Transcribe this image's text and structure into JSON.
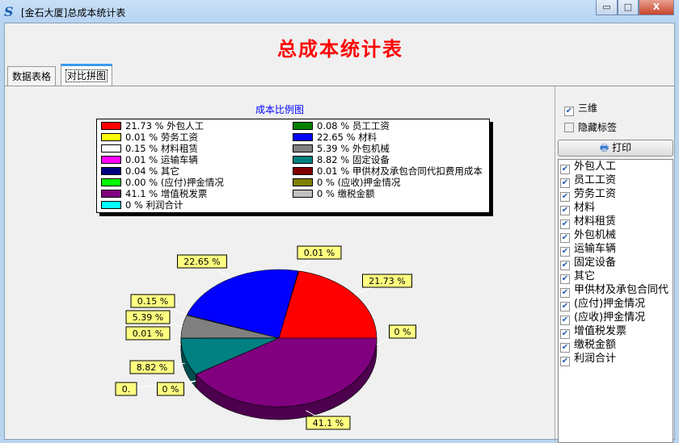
{
  "window": {
    "title": "[金石大厦]总成本统计表",
    "minimize": "▭",
    "maximize": "□",
    "close": "X"
  },
  "header": {
    "title": "总成本统计表"
  },
  "tabs": [
    {
      "label": "数据表格"
    },
    {
      "label": "对比拼图"
    }
  ],
  "side": {
    "three_d": {
      "label": "三维",
      "checked": true
    },
    "hide_labels": {
      "label": "隐藏标签",
      "checked": false
    },
    "print_label": "打印",
    "items": [
      {
        "label": "外包人工",
        "checked": true
      },
      {
        "label": "员工工资",
        "checked": true
      },
      {
        "label": "劳务工资",
        "checked": true
      },
      {
        "label": "材料",
        "checked": true
      },
      {
        "label": "材料租赁",
        "checked": true
      },
      {
        "label": "外包机械",
        "checked": true
      },
      {
        "label": "运输车辆",
        "checked": true
      },
      {
        "label": "固定设备",
        "checked": true
      },
      {
        "label": "其它",
        "checked": true
      },
      {
        "label": "甲供材及承包合同代",
        "checked": true
      },
      {
        "label": "(应付)押金情况",
        "checked": true
      },
      {
        "label": "(应收)押金情况",
        "checked": true
      },
      {
        "label": "增值税发票",
        "checked": true
      },
      {
        "label": "缴税金额",
        "checked": true
      },
      {
        "label": "利润合计",
        "checked": true
      }
    ]
  },
  "chart_data": {
    "type": "pie",
    "title": "成本比例图",
    "three_d": true,
    "legend": "top",
    "slices": [
      {
        "name": "外包人工",
        "value": 21.73,
        "label": "21.73 %",
        "color": "#ff0000"
      },
      {
        "name": "员工工资",
        "value": 0.08,
        "label": "0.08 %",
        "color": "#008000"
      },
      {
        "name": "劳务工资",
        "value": 0.01,
        "label": "0.01 %",
        "color": "#ffff00"
      },
      {
        "name": "材料",
        "value": 22.65,
        "label": "22.65 %",
        "color": "#0000ff"
      },
      {
        "name": "材料租赁",
        "value": 0.15,
        "label": "0.15 %",
        "color": "#ffffff"
      },
      {
        "name": "外包机械",
        "value": 5.39,
        "label": "5.39 %",
        "color": "#808080"
      },
      {
        "name": "运输车辆",
        "value": 0.01,
        "label": "0.01 %",
        "color": "#ff00ff"
      },
      {
        "name": "固定设备",
        "value": 8.82,
        "label": "8.82 %",
        "color": "#008080"
      },
      {
        "name": "其它",
        "value": 0.04,
        "label": "0.04 %",
        "color": "#000080"
      },
      {
        "name": "甲供材及承包合同代扣费用成本",
        "value": 0.01,
        "label": "0.01 %",
        "color": "#800000"
      },
      {
        "name": "(应付)押金情况",
        "value": 0.0,
        "label": "0.00 %",
        "color": "#00ff00"
      },
      {
        "name": "(应收)押金情况",
        "value": 0,
        "label": "0 %",
        "color": "#808000"
      },
      {
        "name": "增值税发票",
        "value": 41.1,
        "label": "41.1 %",
        "color": "#800080"
      },
      {
        "name": "缴税金额",
        "value": 0,
        "label": "0 %",
        "color": "#c0c0c0"
      },
      {
        "name": "利润合计",
        "value": 0,
        "label": "0 %",
        "color": "#00ffff"
      }
    ],
    "pie_labels": [
      "21.73 %",
      "0.01 %",
      "22.65 %",
      "0.15 %",
      "5.39 %",
      "0.01 %",
      "8.82 %",
      "0.",
      "0 %",
      "41.1 %",
      "0 %"
    ]
  }
}
